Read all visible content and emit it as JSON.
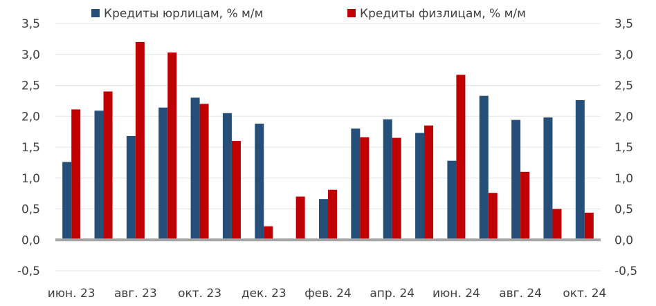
{
  "chart_data": {
    "type": "bar",
    "title": "",
    "xlabel": "",
    "ylabel": "",
    "ylim": [
      -0.5,
      3.5
    ],
    "yticks": [
      3.5,
      3.0,
      2.5,
      2.0,
      1.5,
      1.0,
      0.5,
      0.0,
      -0.5
    ],
    "ytick_labels": [
      "3,5",
      "3,0",
      "2,5",
      "2,0",
      "1,5",
      "1,0",
      "0,5",
      "0,0",
      "-0,5"
    ],
    "grid": true,
    "legend_position": "top",
    "categories": [
      "июн. 23",
      "июл. 23",
      "авг. 23",
      "сен. 23",
      "окт. 23",
      "ноя. 23",
      "дек. 23",
      "янв. 24",
      "фев. 24",
      "мар. 24",
      "апр. 24",
      "май 24",
      "июн. 24",
      "июл. 24",
      "авг. 24",
      "сен. 24",
      "окт. 24"
    ],
    "xtick_labels": [
      "июн. 23",
      "авг. 23",
      "окт. 23",
      "дек. 23",
      "фев. 24",
      "апр. 24",
      "июн. 24",
      "авг. 24",
      "окт. 24"
    ],
    "series": [
      {
        "name": "Кредиты юрлицам, % м/м",
        "color": "#254E78",
        "values": [
          1.26,
          2.09,
          1.68,
          2.14,
          2.3,
          2.05,
          1.88,
          0.0,
          0.66,
          1.8,
          1.95,
          1.73,
          1.28,
          2.33,
          1.94,
          1.98,
          2.26
        ]
      },
      {
        "name": "Кредиты физлицам, % м/м",
        "color": "#C00000",
        "values": [
          2.11,
          2.4,
          3.2,
          3.03,
          2.2,
          1.6,
          0.22,
          0.7,
          0.81,
          1.66,
          1.65,
          1.85,
          2.67,
          0.76,
          1.1,
          0.5,
          0.44
        ]
      }
    ],
    "zero_line_color": "#A6A6A6",
    "grid_color": "#E4E4E4"
  }
}
